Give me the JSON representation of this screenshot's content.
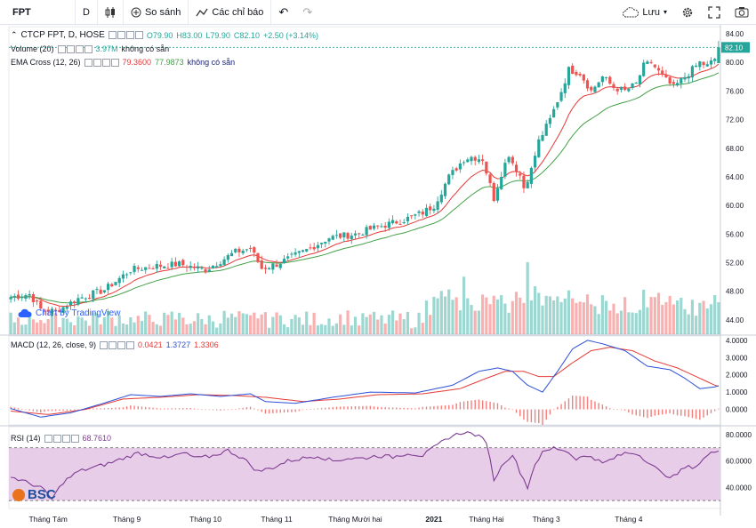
{
  "toolbar": {
    "symbol": "FPT",
    "interval": "D",
    "compare_label": "So sánh",
    "indicators_label": "Các chỉ báo",
    "save_label": "Lưu",
    "icons": [
      "candles-icon",
      "compare-plus-icon",
      "indicators-icon",
      "undo-icon",
      "redo-icon",
      "cloud-save-icon",
      "settings-gear-icon",
      "fullscreen-icon",
      "camera-snapshot-icon"
    ]
  },
  "legend": {
    "main_title": "CTCP FPT, D, HOSE",
    "ohlc": {
      "o": "O79.90",
      "h": "H83.00",
      "l": "L79.90",
      "c": "C82.10",
      "chg": "+2.50 (+3.14%)"
    },
    "volume": {
      "label": "Volume (20)",
      "value": "3.97M",
      "note": "không có sẵn"
    },
    "ema": {
      "label": "EMA Cross (12, 26)",
      "v1": "79.3600",
      "v2": "77.9873",
      "note": "không có sẵn"
    },
    "macd": {
      "label": "MACD (12, 26, close, 9)",
      "v1": "0.0421",
      "v2": "1.3727",
      "v3": "1.3306"
    },
    "rsi": {
      "label": "RSI (14)",
      "v1": "68.7610"
    }
  },
  "watermark": "Chart by TradingView",
  "logo_text": "BSC",
  "colors": {
    "up": "#26a69a",
    "down": "#ef5350",
    "ema_fast": "#e53935",
    "ema_slow": "#43a047",
    "macd": "#2b4fd8",
    "signal": "#e53935",
    "rsi": "#7e3c92",
    "rsi_fill": "#e8cde8",
    "last_price": "#26a69a"
  },
  "chart_data": {
    "type": "candlestick",
    "last_price_label": "82.10",
    "price_ticks": [
      "84.00",
      "80.00",
      "76.00",
      "72.00",
      "68.00",
      "64.00",
      "60.00",
      "56.00",
      "52.00",
      "48.00",
      "44.00"
    ],
    "price_range": [
      42.0,
      85.0
    ],
    "macd_ticks": [
      "4.0000",
      "3.0000",
      "2.0000",
      "1.0000",
      "0.0000"
    ],
    "macd_range": [
      -0.9,
      4.25
    ],
    "rsi_ticks": [
      "80.0000",
      "60.0000",
      "40.0000"
    ],
    "rsi_range": [
      24,
      86
    ],
    "rsi_band": [
      30,
      70
    ],
    "month_labels": [
      "Tháng Tám",
      "Tháng 9",
      "Tháng 10",
      "Tháng 11",
      "Tháng Mười hai",
      "2021",
      "Tháng Hai",
      "Tháng 3",
      "Tháng 4"
    ],
    "month_label_index": [
      10,
      31,
      52,
      71,
      92,
      113,
      127,
      143,
      165
    ],
    "close_keypoints": [
      [
        0,
        47.2
      ],
      [
        5,
        47.6
      ],
      [
        8,
        45.5
      ],
      [
        12,
        45.2
      ],
      [
        18,
        47.0
      ],
      [
        25,
        48.2
      ],
      [
        32,
        51.0
      ],
      [
        38,
        51.5
      ],
      [
        45,
        51.8
      ],
      [
        52,
        51.0
      ],
      [
        60,
        53.5
      ],
      [
        64,
        54.0
      ],
      [
        67,
        51.2
      ],
      [
        71,
        51.8
      ],
      [
        78,
        53.5
      ],
      [
        85,
        55.5
      ],
      [
        92,
        56.0
      ],
      [
        98,
        57.0
      ],
      [
        105,
        58.0
      ],
      [
        110,
        59.0
      ],
      [
        113,
        60.0
      ],
      [
        117,
        64.0
      ],
      [
        121,
        66.5
      ],
      [
        123,
        66.8
      ],
      [
        126,
        66.5
      ],
      [
        129,
        61.0
      ],
      [
        131,
        64.5
      ],
      [
        133,
        67.2
      ],
      [
        134,
        66.0
      ],
      [
        136,
        64.2
      ],
      [
        137,
        62.5
      ],
      [
        139,
        65.0
      ],
      [
        141,
        69.0
      ],
      [
        144,
        72.0
      ],
      [
        147,
        76.0
      ],
      [
        149,
        79.0
      ],
      [
        152,
        78.5
      ],
      [
        155,
        76.0
      ],
      [
        158,
        78.0
      ],
      [
        161,
        76.5
      ],
      [
        164,
        76.0
      ],
      [
        167,
        77.0
      ],
      [
        169,
        79.5
      ],
      [
        171,
        80.0
      ],
      [
        174,
        78.0
      ],
      [
        177,
        76.5
      ],
      [
        179,
        77.5
      ],
      [
        182,
        79.0
      ],
      [
        184,
        80.0
      ],
      [
        186,
        79.5
      ],
      [
        188,
        80.5
      ],
      [
        189,
        82.1
      ]
    ],
    "macd_keypoints": [
      [
        0,
        0.05
      ],
      [
        8,
        -0.45
      ],
      [
        16,
        -0.2
      ],
      [
        24,
        0.3
      ],
      [
        32,
        0.85
      ],
      [
        40,
        0.75
      ],
      [
        48,
        0.9
      ],
      [
        56,
        0.75
      ],
      [
        64,
        0.9
      ],
      [
        68,
        0.45
      ],
      [
        76,
        0.35
      ],
      [
        86,
        0.7
      ],
      [
        96,
        1.0
      ],
      [
        108,
        0.95
      ],
      [
        118,
        1.4
      ],
      [
        125,
        2.2
      ],
      [
        130,
        2.4
      ],
      [
        134,
        2.2
      ],
      [
        138,
        1.4
      ],
      [
        142,
        1.0
      ],
      [
        146,
        2.2
      ],
      [
        150,
        3.5
      ],
      [
        154,
        4.0
      ],
      [
        158,
        3.8
      ],
      [
        164,
        3.4
      ],
      [
        170,
        2.5
      ],
      [
        176,
        2.3
      ],
      [
        180,
        1.8
      ],
      [
        184,
        1.2
      ],
      [
        188,
        1.3
      ],
      [
        189,
        1.37
      ]
    ],
    "signal_keypoints": [
      [
        0,
        -0.1
      ],
      [
        10,
        -0.3
      ],
      [
        20,
        0.0
      ],
      [
        30,
        0.6
      ],
      [
        40,
        0.7
      ],
      [
        50,
        0.85
      ],
      [
        60,
        0.8
      ],
      [
        68,
        0.7
      ],
      [
        78,
        0.45
      ],
      [
        88,
        0.6
      ],
      [
        98,
        0.85
      ],
      [
        110,
        0.9
      ],
      [
        120,
        1.2
      ],
      [
        127,
        1.8
      ],
      [
        132,
        2.2
      ],
      [
        137,
        2.2
      ],
      [
        141,
        1.9
      ],
      [
        145,
        1.9
      ],
      [
        150,
        2.7
      ],
      [
        155,
        3.4
      ],
      [
        160,
        3.6
      ],
      [
        166,
        3.4
      ],
      [
        172,
        2.8
      ],
      [
        178,
        2.4
      ],
      [
        184,
        1.8
      ],
      [
        188,
        1.4
      ],
      [
        189,
        1.33
      ]
    ],
    "rsi_keypoints": [
      [
        0,
        48
      ],
      [
        4,
        44
      ],
      [
        8,
        40
      ],
      [
        11,
        31
      ],
      [
        14,
        44
      ],
      [
        18,
        52
      ],
      [
        22,
        55
      ],
      [
        26,
        58
      ],
      [
        30,
        62
      ],
      [
        34,
        66
      ],
      [
        38,
        64
      ],
      [
        42,
        62
      ],
      [
        46,
        66
      ],
      [
        50,
        62
      ],
      [
        54,
        64
      ],
      [
        58,
        68
      ],
      [
        62,
        62
      ],
      [
        66,
        52
      ],
      [
        70,
        55
      ],
      [
        74,
        60
      ],
      [
        78,
        62
      ],
      [
        82,
        64
      ],
      [
        86,
        60
      ],
      [
        90,
        62
      ],
      [
        94,
        62
      ],
      [
        98,
        64
      ],
      [
        102,
        63
      ],
      [
        106,
        66
      ],
      [
        110,
        64
      ],
      [
        113,
        70
      ],
      [
        117,
        78
      ],
      [
        121,
        82
      ],
      [
        124,
        80
      ],
      [
        127,
        75
      ],
      [
        129,
        46
      ],
      [
        132,
        60
      ],
      [
        134,
        65
      ],
      [
        136,
        52
      ],
      [
        138,
        40
      ],
      [
        140,
        58
      ],
      [
        142,
        66
      ],
      [
        145,
        70
      ],
      [
        148,
        68
      ],
      [
        151,
        62
      ],
      [
        155,
        64
      ],
      [
        158,
        58
      ],
      [
        161,
        62
      ],
      [
        164,
        66
      ],
      [
        167,
        66
      ],
      [
        170,
        60
      ],
      [
        174,
        50
      ],
      [
        177,
        48
      ],
      [
        180,
        55
      ],
      [
        183,
        56
      ],
      [
        186,
        64
      ],
      [
        189,
        68.8
      ]
    ],
    "volume_note": "Volume bars (Volume 20)"
  }
}
